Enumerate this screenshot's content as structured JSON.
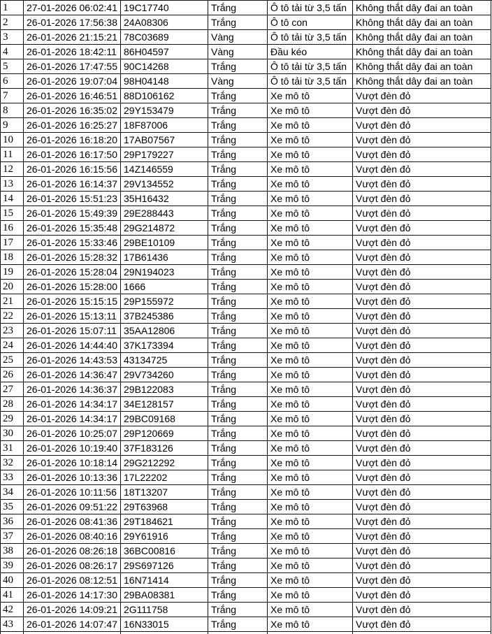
{
  "colors": {
    "grid_border": "#111111",
    "text": "#000000",
    "background": "#ffffff"
  },
  "table": {
    "column_keys": [
      "row-index",
      "timestamp",
      "plate-number",
      "vehicle-color",
      "vehicle-type",
      "violation"
    ],
    "rows": [
      [
        "1",
        "27-01-2026 06:02:41",
        "19C17740",
        "Trắng",
        "Ô tô tải từ 3,5 tấn",
        "Không thắt dây đai an toàn"
      ],
      [
        "2",
        "26-01-2026 17:56:38",
        "24A08306",
        "Trắng",
        "Ô tô con",
        "Không thắt dây đai an toàn"
      ],
      [
        "3",
        "26-01-2026 21:15:21",
        "78C03689",
        "Vàng",
        "Ô tô tải từ 3,5 tấn",
        "Không thắt dây đai an toàn"
      ],
      [
        "4",
        "26-01-2026 18:42:11",
        "86H04597",
        "Vàng",
        "Đầu kéo",
        "Không thắt dây đai an toàn"
      ],
      [
        "5",
        "26-01-2026 17:47:55",
        "90C14268",
        "Trắng",
        "Ô tô tải từ 3,5 tấn",
        "Không thắt dây đai an toàn"
      ],
      [
        "6",
        "26-01-2026 19:07:04",
        "98H04148",
        "Vàng",
        "Ô tô tải từ 3,5 tấn",
        "Không thắt dây đai an toàn"
      ],
      [
        "7",
        "26-01-2026 16:46:51",
        "88D106162",
        "Trắng",
        "Xe mô tô",
        "Vượt đèn đỏ"
      ],
      [
        "8",
        "26-01-2026 16:35:02",
        "29Y153479",
        "Trắng",
        "Xe mô tô",
        "Vượt đèn đỏ"
      ],
      [
        "9",
        "26-01-2026 16:25:27",
        "18F87006",
        "Trắng",
        "Xe mô tô",
        "Vượt đèn đỏ"
      ],
      [
        "10",
        "26-01-2026 16:18:20",
        "17AB07567",
        "Trắng",
        "Xe mô tô",
        "Vượt đèn đỏ"
      ],
      [
        "11",
        "26-01-2026 16:17:50",
        "29P179227",
        "Trắng",
        "Xe mô tô",
        "Vượt đèn đỏ"
      ],
      [
        "12",
        "26-01-2026 16:15:56",
        "14Z146559",
        "Trắng",
        "Xe mô tô",
        "Vượt đèn đỏ"
      ],
      [
        "13",
        "26-01-2026 16:14:37",
        "29V134552",
        "Trắng",
        "Xe mô tô",
        "Vượt đèn đỏ"
      ],
      [
        "14",
        "26-01-2026 15:51:23",
        "35H16432",
        "Trắng",
        "Xe mô tô",
        "Vượt đèn đỏ"
      ],
      [
        "15",
        "26-01-2026 15:49:39",
        "29E288443",
        "Trắng",
        "Xe mô tô",
        "Vượt đèn đỏ"
      ],
      [
        "16",
        "26-01-2026 15:35:48",
        "29G214872",
        "Trắng",
        "Xe mô tô",
        "Vượt đèn đỏ"
      ],
      [
        "17",
        "26-01-2026 15:33:46",
        "29BE10109",
        "Trắng",
        "Xe mô tô",
        "Vượt đèn đỏ"
      ],
      [
        "18",
        "26-01-2026 15:28:32",
        "17B61436",
        "Trắng",
        "Xe mô tô",
        "Vượt đèn đỏ"
      ],
      [
        "19",
        "26-01-2026 15:28:04",
        "29N194023",
        "Trắng",
        "Xe mô tô",
        "Vượt đèn đỏ"
      ],
      [
        "20",
        "26-01-2026 15:28:00",
        "1666",
        "Trắng",
        "Xe mô tô",
        "Vượt đèn đỏ"
      ],
      [
        "21",
        "26-01-2026 15:15:15",
        "29P155972",
        "Trắng",
        "Xe mô tô",
        "Vượt đèn đỏ"
      ],
      [
        "22",
        "26-01-2026 15:13:11",
        "37B245386",
        "Trắng",
        "Xe mô tô",
        "Vượt đèn đỏ"
      ],
      [
        "23",
        "26-01-2026 15:07:11",
        "35AA12806",
        "Trắng",
        "Xe mô tô",
        "Vượt đèn đỏ"
      ],
      [
        "24",
        "26-01-2026 14:44:40",
        "37K173394",
        "Trắng",
        "Xe mô tô",
        "Vượt đèn đỏ"
      ],
      [
        "25",
        "26-01-2026 14:43:53",
        "43134725",
        "Trắng",
        "Xe mô tô",
        "Vượt đèn đỏ"
      ],
      [
        "26",
        "26-01-2026 14:36:47",
        "29V734260",
        "Trắng",
        "Xe mô tô",
        "Vượt đèn đỏ"
      ],
      [
        "27",
        "26-01-2026 14:36:37",
        "29B122083",
        "Trắng",
        "Xe mô tô",
        "Vượt đèn đỏ"
      ],
      [
        "28",
        "26-01-2026 14:34:17",
        "34E128157",
        "Trắng",
        "Xe mô tô",
        "Vượt đèn đỏ"
      ],
      [
        "29",
        "26-01-2026 14:34:17",
        "29BC09168",
        "Trắng",
        "Xe mô tô",
        "Vượt đèn đỏ"
      ],
      [
        "30",
        "26-01-2026 10:25:07",
        "29P120669",
        "Trắng",
        "Xe mô tô",
        "Vượt đèn đỏ"
      ],
      [
        "31",
        "26-01-2026 10:19:40",
        "37F183126",
        "Trắng",
        "Xe mô tô",
        "Vượt đèn đỏ"
      ],
      [
        "32",
        "26-01-2026 10:18:14",
        "29G212292",
        "Trắng",
        "Xe mô tô",
        "Vượt đèn đỏ"
      ],
      [
        "33",
        "26-01-2026 10:13:36",
        "17L22202",
        "Trắng",
        "Xe mô tô",
        "Vượt đèn đỏ"
      ],
      [
        "34",
        "26-01-2026 10:11:56",
        "18T13207",
        "Trắng",
        "Xe mô tô",
        "Vượt đèn đỏ"
      ],
      [
        "35",
        "26-01-2026 09:51:22",
        "29T63968",
        "Trắng",
        "Xe mô tô",
        "Vượt đèn đỏ"
      ],
      [
        "36",
        "26-01-2026 08:41:36",
        "29T184621",
        "Trắng",
        "Xe mô tô",
        "Vượt đèn đỏ"
      ],
      [
        "37",
        "26-01-2026 08:40:16",
        "29Y61916",
        "Trắng",
        "Xe mô tô",
        "Vượt đèn đỏ"
      ],
      [
        "38",
        "26-01-2026 08:26:18",
        "36BC00816",
        "Trắng",
        "Xe mô tô",
        "Vượt đèn đỏ"
      ],
      [
        "39",
        "26-01-2026 08:26:17",
        "29S697126",
        "Trắng",
        "Xe mô tô",
        "Vượt đèn đỏ"
      ],
      [
        "40",
        "26-01-2026 08:12:51",
        "16N71414",
        "Trắng",
        "Xe mô tô",
        "Vượt đèn đỏ"
      ],
      [
        "41",
        "26-01-2026 14:17:30",
        "29BA08381",
        "Trắng",
        "Xe mô tô",
        "Vượt đèn đỏ"
      ],
      [
        "42",
        "26-01-2026 14:09:21",
        "2G111758",
        "Trắng",
        "Xe mô tô",
        "Vượt đèn đỏ"
      ],
      [
        "43",
        "26-01-2026 14:07:47",
        "16N33015",
        "Trắng",
        "Xe mô tô",
        "Vượt đèn đỏ"
      ]
    ]
  }
}
